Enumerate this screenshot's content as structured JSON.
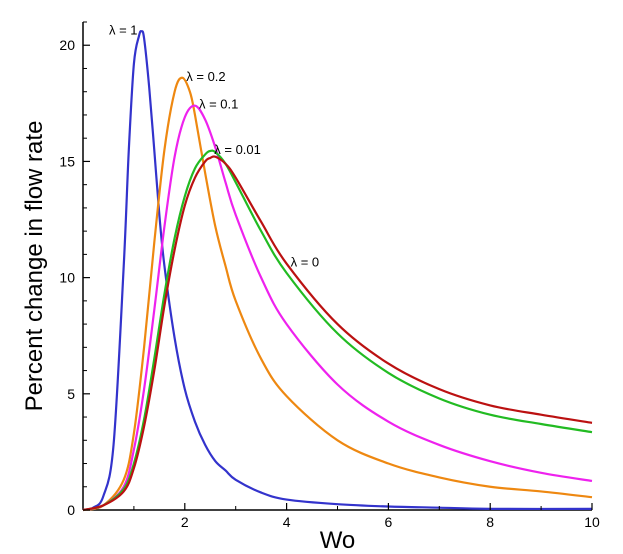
{
  "chart_data": {
    "type": "line",
    "title": "",
    "xlabel": "Wo",
    "ylabel": "Percent change in flow rate",
    "xlim": [
      0,
      10
    ],
    "ylim": [
      0,
      21
    ],
    "x_ticks": [
      2,
      4,
      6,
      8,
      10
    ],
    "y_ticks": [
      0,
      5,
      10,
      15,
      20
    ],
    "grid": false,
    "series": [
      {
        "name": "λ = 1",
        "color": "#3333cc",
        "x": [
          0.0,
          0.2,
          0.4,
          0.6,
          0.8,
          0.9,
          1.0,
          1.1,
          1.15,
          1.2,
          1.3,
          1.4,
          1.5,
          1.6,
          1.8,
          2.0,
          2.2,
          2.4,
          2.6,
          2.8,
          3.0,
          3.5,
          4.0,
          5.0,
          6.0,
          7.0,
          8.0,
          10.0
        ],
        "y": [
          0.0,
          0.1,
          0.6,
          2.8,
          10.5,
          15.5,
          19.2,
          20.4,
          20.6,
          20.3,
          18.2,
          15.5,
          12.7,
          10.5,
          7.4,
          5.2,
          3.8,
          2.8,
          2.1,
          1.7,
          1.3,
          0.75,
          0.45,
          0.25,
          0.15,
          0.1,
          0.05,
          0.05
        ]
      },
      {
        "name": "λ = 0.2",
        "color": "#ee8811",
        "x": [
          0.0,
          0.4,
          0.8,
          1.0,
          1.2,
          1.4,
          1.6,
          1.8,
          1.95,
          2.1,
          2.2,
          2.4,
          2.6,
          2.8,
          3.0,
          3.5,
          4.0,
          5.0,
          6.0,
          7.0,
          8.0,
          9.0,
          10.0
        ],
        "y": [
          0.0,
          0.2,
          1.3,
          3.3,
          7.0,
          11.5,
          15.5,
          18.0,
          18.6,
          18.0,
          17.0,
          14.5,
          12.2,
          10.5,
          9.0,
          6.5,
          4.9,
          3.0,
          2.0,
          1.4,
          1.0,
          0.8,
          0.55
        ]
      },
      {
        "name": "λ = 0.1",
        "color": "#ee22ee",
        "x": [
          0.0,
          0.4,
          0.8,
          1.0,
          1.2,
          1.4,
          1.6,
          1.8,
          2.0,
          2.2,
          2.4,
          2.6,
          2.8,
          3.0,
          3.5,
          4.0,
          5.0,
          6.0,
          7.0,
          8.0,
          9.0,
          10.0
        ],
        "y": [
          0.0,
          0.2,
          1.0,
          2.6,
          5.2,
          8.6,
          12.2,
          15.2,
          16.9,
          17.4,
          16.8,
          15.6,
          14.1,
          12.7,
          10.0,
          8.0,
          5.4,
          3.8,
          2.8,
          2.1,
          1.6,
          1.25
        ]
      },
      {
        "name": "λ = 0.01",
        "color": "#22bb22",
        "x": [
          0.0,
          0.4,
          0.8,
          1.0,
          1.2,
          1.4,
          1.6,
          1.8,
          2.0,
          2.2,
          2.4,
          2.5,
          2.6,
          2.8,
          3.0,
          3.5,
          4.0,
          5.0,
          6.0,
          7.0,
          8.0,
          9.0,
          10.0
        ],
        "y": [
          0.0,
          0.2,
          0.9,
          2.0,
          3.9,
          6.5,
          9.3,
          11.7,
          13.5,
          14.7,
          15.3,
          15.45,
          15.4,
          14.9,
          14.1,
          12.0,
          10.2,
          7.6,
          5.9,
          4.8,
          4.1,
          3.7,
          3.35
        ]
      },
      {
        "name": "λ = 0",
        "color": "#bb1111",
        "x": [
          0.0,
          0.4,
          0.8,
          1.0,
          1.2,
          1.4,
          1.6,
          1.8,
          2.0,
          2.2,
          2.4,
          2.5,
          2.6,
          2.8,
          3.0,
          3.5,
          4.0,
          5.0,
          6.0,
          7.0,
          8.0,
          9.0,
          10.0
        ],
        "y": [
          0.0,
          0.2,
          0.8,
          1.8,
          3.6,
          6.0,
          8.8,
          11.2,
          13.1,
          14.3,
          15.0,
          15.15,
          15.2,
          14.9,
          14.3,
          12.4,
          10.6,
          8.0,
          6.3,
          5.2,
          4.5,
          4.1,
          3.75
        ]
      }
    ],
    "annotations": [
      {
        "text": "λ = 1",
        "series": 0,
        "x": 1.15,
        "y": 20.6,
        "anchor": "end"
      },
      {
        "text": "λ = 0.2",
        "series": 1,
        "x": 1.95,
        "y": 18.6,
        "anchor": "start"
      },
      {
        "text": "λ = 0.1",
        "series": 2,
        "x": 2.2,
        "y": 17.4,
        "anchor": "start"
      },
      {
        "text": "λ = 0.01",
        "series": 3,
        "x": 2.5,
        "y": 15.45,
        "anchor": "start"
      },
      {
        "text": "λ = 0",
        "series": 4,
        "x": 4.0,
        "y": 10.6,
        "anchor": "start"
      }
    ]
  }
}
